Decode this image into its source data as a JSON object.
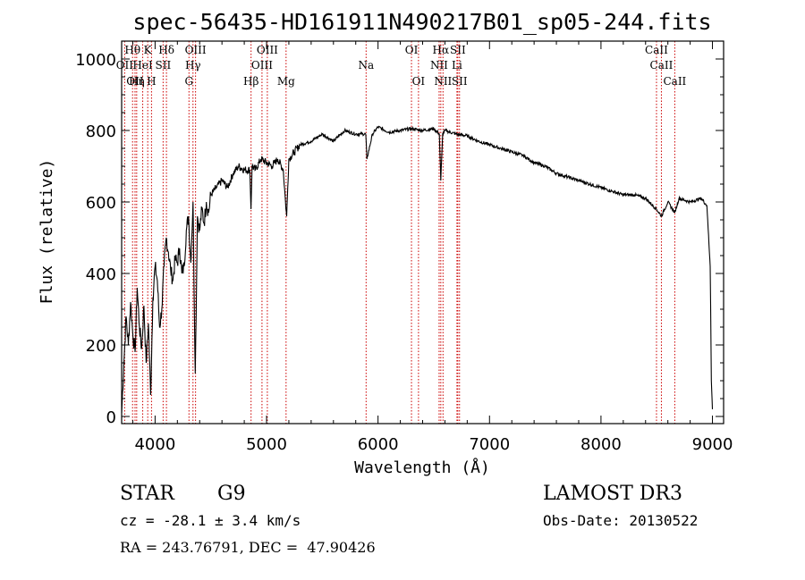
{
  "chart_data": {
    "type": "line",
    "title": "spec-56435-HD161911N490217B01_sp05-244.fits",
    "xlabel": "Wavelength (Å)",
    "ylabel": "Flux (relative)",
    "xlim": [
      3700,
      9100
    ],
    "ylim": [
      -20,
      1050
    ],
    "xticks": [
      4000,
      5000,
      6000,
      7000,
      8000,
      9000
    ],
    "yticks": [
      0,
      200,
      400,
      600,
      800,
      1000
    ],
    "series": [
      {
        "name": "flux",
        "x": [
          3700,
          3720,
          3740,
          3760,
          3780,
          3800,
          3820,
          3840,
          3860,
          3880,
          3900,
          3920,
          3940,
          3960,
          3980,
          4000,
          4020,
          4040,
          4060,
          4080,
          4100,
          4120,
          4140,
          4160,
          4180,
          4200,
          4220,
          4240,
          4260,
          4280,
          4300,
          4320,
          4340,
          4360,
          4380,
          4400,
          4420,
          4440,
          4460,
          4480,
          4500,
          4550,
          4600,
          4650,
          4700,
          4750,
          4800,
          4850,
          4860,
          4870,
          4900,
          4950,
          5000,
          5050,
          5100,
          5150,
          5170,
          5180,
          5190,
          5200,
          5250,
          5300,
          5400,
          5500,
          5600,
          5700,
          5800,
          5890,
          5900,
          5950,
          6000,
          6100,
          6200,
          6300,
          6400,
          6500,
          6550,
          6563,
          6580,
          6600,
          6700,
          6800,
          6900,
          7000,
          7100,
          7200,
          7300,
          7400,
          7500,
          7600,
          7700,
          7800,
          7900,
          8000,
          8100,
          8200,
          8300,
          8400,
          8498,
          8542,
          8600,
          8662,
          8700,
          8800,
          8900,
          8950,
          8980,
          8990,
          9000
        ],
        "y": [
          10,
          150,
          280,
          200,
          320,
          230,
          180,
          360,
          250,
          190,
          310,
          150,
          260,
          60,
          330,
          420,
          380,
          250,
          300,
          420,
          500,
          460,
          410,
          380,
          440,
          430,
          470,
          400,
          420,
          520,
          560,
          430,
          600,
          120,
          560,
          520,
          580,
          540,
          600,
          570,
          620,
          640,
          660,
          640,
          680,
          700,
          690,
          690,
          580,
          700,
          690,
          720,
          710,
          700,
          720,
          690,
          600,
          560,
          640,
          720,
          740,
          760,
          770,
          790,
          770,
          800,
          790,
          790,
          720,
          790,
          810,
          795,
          800,
          805,
          800,
          805,
          790,
          660,
          790,
          800,
          790,
          785,
          770,
          760,
          750,
          740,
          730,
          710,
          700,
          680,
          670,
          660,
          650,
          640,
          630,
          620,
          620,
          610,
          580,
          560,
          600,
          570,
          610,
          600,
          610,
          590,
          420,
          100,
          20
        ]
      }
    ],
    "lines": [
      {
        "wl": 3727,
        "label": "OII",
        "row": 2
      },
      {
        "wl": 3798,
        "label": "Hθ",
        "row": 1
      },
      {
        "wl": 3820,
        "label": "OII",
        "row": 3
      },
      {
        "wl": 3835,
        "label": "Hη",
        "row": 3
      },
      {
        "wl": 3889,
        "label": "HeI",
        "row": 2
      },
      {
        "wl": 3934,
        "label": "K",
        "row": 1
      },
      {
        "wl": 3968,
        "label": "H",
        "row": 3
      },
      {
        "wl": 4072,
        "label": "SII",
        "row": 2
      },
      {
        "wl": 4102,
        "label": "Hδ",
        "row": 1
      },
      {
        "wl": 4304,
        "label": "G",
        "row": 3
      },
      {
        "wl": 4340,
        "label": "Hγ",
        "row": 2
      },
      {
        "wl": 4363,
        "label": "OIII",
        "row": 1
      },
      {
        "wl": 4861,
        "label": "Hβ",
        "row": 3
      },
      {
        "wl": 4959,
        "label": "OIII",
        "row": 2
      },
      {
        "wl": 5007,
        "label": "OIII",
        "row": 1
      },
      {
        "wl": 5175,
        "label": "Mg",
        "row": 3
      },
      {
        "wl": 5893,
        "label": "Na",
        "row": 2
      },
      {
        "wl": 6300,
        "label": "OI",
        "row": 1
      },
      {
        "wl": 6363,
        "label": "OI",
        "row": 3
      },
      {
        "wl": 6548,
        "label": "NII",
        "row": 2
      },
      {
        "wl": 6563,
        "label": "Hα",
        "row": 1
      },
      {
        "wl": 6583,
        "label": "NII",
        "row": 3
      },
      {
        "wl": 6708,
        "label": "Li",
        "row": 2
      },
      {
        "wl": 6716,
        "label": "SII",
        "row": 1
      },
      {
        "wl": 6731,
        "label": "SII",
        "row": 3
      },
      {
        "wl": 8498,
        "label": "CaII",
        "row": 1
      },
      {
        "wl": 8542,
        "label": "CaII",
        "row": 2
      },
      {
        "wl": 8662,
        "label": "CaII",
        "row": 3
      }
    ]
  },
  "info": {
    "object_class": "STAR",
    "subclass": "G9",
    "survey": "LAMOST DR3",
    "redshift": "cz = -28.1 ± 3.4 km/s",
    "obs_date": "Obs-Date: 20130522",
    "coords": "RA = 243.76791, DEC =  47.90426"
  },
  "colors": {
    "line_marker": "#cc0000",
    "spectrum": "#000000",
    "axes": "#000000"
  }
}
